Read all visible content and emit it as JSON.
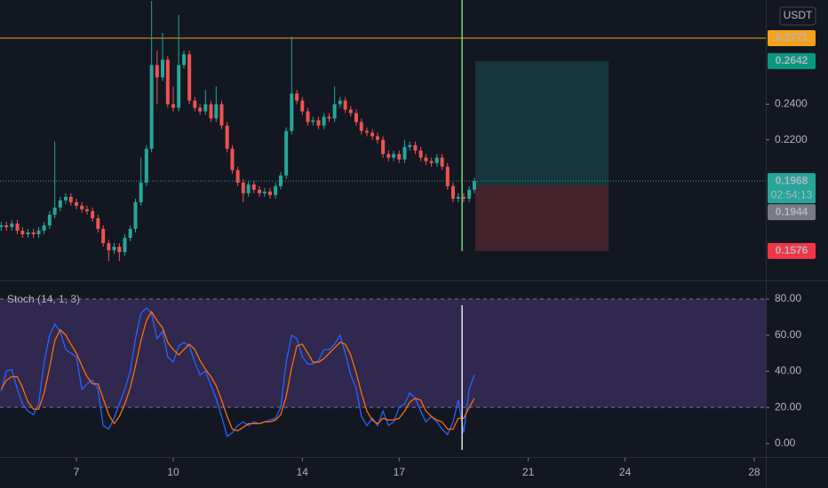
{
  "chart_data": [
    {
      "type": "candlestick",
      "currency": "USDT",
      "x": [
        4.67,
        4.83,
        5,
        5.17,
        5.33,
        5.5,
        5.67,
        5.83,
        6,
        6.17,
        6.33,
        6.5,
        6.67,
        6.83,
        7,
        7.17,
        7.33,
        7.5,
        7.67,
        7.83,
        8,
        8.17,
        8.33,
        8.5,
        8.67,
        8.83,
        9,
        9.17,
        9.33,
        9.5,
        9.67,
        9.83,
        10,
        10.17,
        10.33,
        10.5,
        10.67,
        10.83,
        11,
        11.17,
        11.33,
        11.5,
        11.67,
        11.83,
        12,
        12.17,
        12.33,
        12.5,
        12.67,
        12.83,
        13,
        13.17,
        13.33,
        13.5,
        13.67,
        13.83,
        14,
        14.17,
        14.33,
        14.5,
        14.67,
        14.83,
        15,
        15.17,
        15.33,
        15.5,
        15.67,
        15.83,
        16,
        16.17,
        16.33,
        16.5,
        16.67,
        16.83,
        17,
        17.17,
        17.33,
        17.5,
        17.67,
        17.83,
        18,
        18.17,
        18.33,
        18.5,
        18.67,
        18.83,
        19,
        19.17,
        19.33
      ],
      "open": [
        0.171,
        0.172,
        0.171,
        0.173,
        0.169,
        0.167,
        0.168,
        0.167,
        0.169,
        0.172,
        0.178,
        0.182,
        0.186,
        0.188,
        0.185,
        0.183,
        0.181,
        0.18,
        0.176,
        0.17,
        0.162,
        0.158,
        0.16,
        0.157,
        0.165,
        0.17,
        0.185,
        0.196,
        0.215,
        0.262,
        0.255,
        0.265,
        0.24,
        0.238,
        0.262,
        0.268,
        0.242,
        0.238,
        0.236,
        0.24,
        0.232,
        0.24,
        0.228,
        0.215,
        0.203,
        0.196,
        0.19,
        0.195,
        0.192,
        0.19,
        0.191,
        0.189,
        0.194,
        0.2,
        0.225,
        0.246,
        0.242,
        0.236,
        0.23,
        0.231,
        0.228,
        0.233,
        0.232,
        0.24,
        0.242,
        0.237,
        0.235,
        0.23,
        0.225,
        0.224,
        0.222,
        0.22,
        0.212,
        0.21,
        0.212,
        0.209,
        0.216,
        0.217,
        0.214,
        0.21,
        0.208,
        0.207,
        0.21,
        0.205,
        0.194,
        0.187,
        0.188,
        0.187,
        0.192
      ],
      "high": [
        0.174,
        0.174,
        0.175,
        0.175,
        0.171,
        0.17,
        0.17,
        0.171,
        0.174,
        0.18,
        0.219,
        0.188,
        0.19,
        0.19,
        0.187,
        0.185,
        0.183,
        0.182,
        0.178,
        0.172,
        0.164,
        0.162,
        0.162,
        0.167,
        0.172,
        0.187,
        0.21,
        0.217,
        0.298,
        0.27,
        0.28,
        0.267,
        0.25,
        0.29,
        0.27,
        0.27,
        0.244,
        0.24,
        0.248,
        0.242,
        0.25,
        0.242,
        0.23,
        0.217,
        0.205,
        0.198,
        0.197,
        0.197,
        0.194,
        0.193,
        0.193,
        0.196,
        0.202,
        0.227,
        0.278,
        0.248,
        0.244,
        0.238,
        0.233,
        0.233,
        0.235,
        0.235,
        0.25,
        0.244,
        0.244,
        0.239,
        0.237,
        0.232,
        0.227,
        0.226,
        0.224,
        0.222,
        0.214,
        0.214,
        0.214,
        0.22,
        0.219,
        0.219,
        0.216,
        0.212,
        0.21,
        0.212,
        0.212,
        0.207,
        0.196,
        0.19,
        0.19,
        0.194,
        0.1985
      ],
      "low": [
        0.169,
        0.169,
        0.169,
        0.167,
        0.165,
        0.165,
        0.165,
        0.165,
        0.167,
        0.17,
        0.176,
        0.18,
        0.184,
        0.183,
        0.181,
        0.179,
        0.178,
        0.174,
        0.168,
        0.16,
        0.152,
        0.156,
        0.152,
        0.155,
        0.163,
        0.168,
        0.183,
        0.194,
        0.213,
        0.24,
        0.253,
        0.238,
        0.236,
        0.236,
        0.26,
        0.24,
        0.236,
        0.234,
        0.234,
        0.23,
        0.23,
        0.226,
        0.213,
        0.201,
        0.194,
        0.185,
        0.188,
        0.19,
        0.188,
        0.188,
        0.187,
        0.187,
        0.192,
        0.198,
        0.223,
        0.24,
        0.234,
        0.228,
        0.228,
        0.226,
        0.226,
        0.23,
        0.23,
        0.238,
        0.235,
        0.233,
        0.228,
        0.223,
        0.222,
        0.22,
        0.218,
        0.21,
        0.208,
        0.208,
        0.207,
        0.207,
        0.214,
        0.212,
        0.208,
        0.206,
        0.205,
        0.205,
        0.203,
        0.192,
        0.185,
        0.185,
        0.185,
        0.185,
        0.19
      ],
      "close": [
        0.172,
        0.171,
        0.173,
        0.169,
        0.167,
        0.168,
        0.167,
        0.169,
        0.172,
        0.178,
        0.182,
        0.186,
        0.188,
        0.185,
        0.183,
        0.181,
        0.18,
        0.176,
        0.17,
        0.162,
        0.158,
        0.16,
        0.157,
        0.165,
        0.17,
        0.185,
        0.196,
        0.215,
        0.262,
        0.255,
        0.265,
        0.24,
        0.238,
        0.262,
        0.268,
        0.242,
        0.238,
        0.236,
        0.24,
        0.232,
        0.24,
        0.228,
        0.215,
        0.203,
        0.196,
        0.19,
        0.195,
        0.192,
        0.19,
        0.191,
        0.189,
        0.194,
        0.2,
        0.225,
        0.246,
        0.242,
        0.236,
        0.23,
        0.231,
        0.228,
        0.233,
        0.232,
        0.24,
        0.242,
        0.237,
        0.235,
        0.23,
        0.225,
        0.224,
        0.222,
        0.22,
        0.212,
        0.21,
        0.212,
        0.209,
        0.216,
        0.217,
        0.214,
        0.21,
        0.208,
        0.207,
        0.21,
        0.205,
        0.194,
        0.187,
        0.188,
        0.187,
        0.192,
        0.1968
      ],
      "up_color": "#26a69a",
      "down_color": "#ef5350",
      "xlim": [
        4.633,
        28.36
      ],
      "ylim": [
        0.1416,
        0.2985
      ],
      "yticks": [
        {
          "value": 0.24,
          "label": "0.2400"
        },
        {
          "value": 0.22,
          "label": "0.2200"
        }
      ],
      "hlines": [
        {
          "value": 0.2771,
          "color": "#f7a21b",
          "style": "solid"
        },
        {
          "value": 0.1968,
          "color": "#26a69a",
          "style": "dotted"
        }
      ],
      "position": {
        "x": [
          19.36,
          23.49
        ],
        "target": 0.2642,
        "entry": 0.1944,
        "stop": 0.1576,
        "profit_color": "rgba(38,166,154,0.22)",
        "loss_color": "rgba(239,83,80,0.22)"
      },
      "marker": {
        "x": 18.95,
        "color": "#6fd87a"
      },
      "price_labels": [
        {
          "value": 0.2771,
          "color": "#f7a21b",
          "text_color": "#131722"
        },
        {
          "value": 0.2642,
          "color": "#089981",
          "text_color": "#ffffff"
        },
        {
          "value": 0.1968,
          "color": "#26a69a",
          "text_color": "#ffffff",
          "countdown": "02:54:13"
        },
        {
          "value": 0.1944,
          "color": "#787b86",
          "text_color": "#ffffff"
        },
        {
          "value": 0.1576,
          "color": "#f23645",
          "text_color": "#ffffff"
        }
      ]
    },
    {
      "type": "line",
      "title": "Stoch (14, 1, 3)",
      "x": [
        4.67,
        4.83,
        5,
        5.17,
        5.33,
        5.5,
        5.67,
        5.83,
        6,
        6.17,
        6.33,
        6.5,
        6.67,
        6.83,
        7,
        7.17,
        7.33,
        7.5,
        7.67,
        7.83,
        8,
        8.17,
        8.33,
        8.5,
        8.67,
        8.83,
        9,
        9.17,
        9.33,
        9.5,
        9.67,
        9.83,
        10,
        10.17,
        10.33,
        10.5,
        10.67,
        10.83,
        11,
        11.17,
        11.33,
        11.5,
        11.67,
        11.83,
        12,
        12.17,
        12.33,
        12.5,
        12.67,
        12.83,
        13,
        13.17,
        13.33,
        13.5,
        13.67,
        13.83,
        14,
        14.17,
        14.33,
        14.5,
        14.67,
        14.83,
        15,
        15.17,
        15.33,
        15.5,
        15.67,
        15.83,
        16,
        16.17,
        16.33,
        16.5,
        16.67,
        16.83,
        17,
        17.17,
        17.33,
        17.5,
        17.67,
        17.83,
        18,
        18.17,
        18.33,
        18.5,
        18.67,
        18.83,
        19,
        19.17,
        19.33
      ],
      "series": [
        {
          "color": "#2962ff",
          "values": [
            29,
            40,
            41,
            30,
            22,
            18,
            16,
            22,
            45,
            60,
            66,
            62,
            52,
            50,
            48,
            30,
            33,
            35,
            30,
            10,
            8,
            14,
            22,
            30,
            40,
            58,
            72,
            75,
            72,
            58,
            62,
            48,
            45,
            54,
            56,
            54,
            45,
            38,
            40,
            32,
            25,
            15,
            4,
            6,
            10,
            12,
            10,
            12,
            11,
            12,
            13,
            14,
            20,
            45,
            60,
            58,
            48,
            44,
            44,
            46,
            52,
            52,
            55,
            60,
            50,
            38,
            30,
            15,
            10,
            14,
            10,
            18,
            10,
            12,
            20,
            22,
            28,
            25,
            18,
            12,
            15,
            12,
            8,
            5,
            12,
            24,
            6,
            30,
            38
          ]
        },
        {
          "color": "#ff6d00",
          "values": [
            30,
            35,
            37,
            37,
            31,
            23,
            19,
            19,
            28,
            42,
            57,
            63,
            60,
            55,
            50,
            43,
            37,
            33,
            33,
            25,
            16,
            11,
            15,
            22,
            31,
            43,
            57,
            68,
            73,
            68,
            64,
            56,
            52,
            49,
            52,
            55,
            52,
            46,
            41,
            37,
            32,
            24,
            15,
            8,
            7,
            9,
            11,
            11,
            11,
            12,
            12,
            13,
            16,
            26,
            42,
            54,
            55,
            50,
            45,
            45,
            47,
            50,
            53,
            56,
            55,
            49,
            39,
            28,
            18,
            13,
            11,
            14,
            13,
            13,
            14,
            18,
            23,
            25,
            24,
            18,
            15,
            13,
            12,
            8,
            8,
            14,
            14,
            20,
            25
          ]
        }
      ],
      "band": [
        20,
        80
      ],
      "band_color": "rgba(126,87,194,0.28)",
      "xlim": [
        4.633,
        28.36
      ],
      "ylim": [
        -7.4,
        89.3
      ],
      "yticks": [
        {
          "value": 80,
          "label": "80.00"
        },
        {
          "value": 60,
          "label": "60.00"
        },
        {
          "value": 40,
          "label": "40.00"
        },
        {
          "value": 20,
          "label": "20.00"
        },
        {
          "value": 0,
          "label": "0.00"
        }
      ],
      "xticks": [
        7,
        10,
        14,
        17,
        21,
        24,
        28
      ],
      "marker": {
        "x": 18.95,
        "color": "#e0e3eb"
      }
    }
  ]
}
